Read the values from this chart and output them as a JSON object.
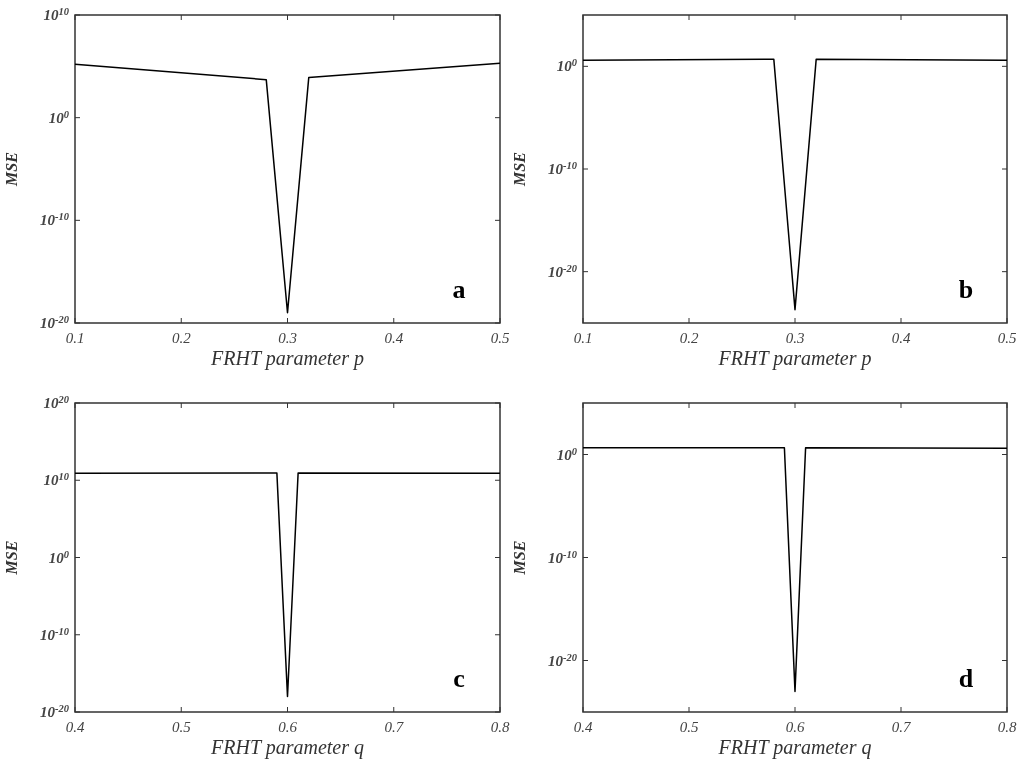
{
  "chart_data": [
    {
      "type": "line",
      "xlabel": "FRHT parameter p",
      "ylabel": "MSE",
      "log": "y",
      "annotations": [
        "a"
      ],
      "x": [
        0.1,
        0.28,
        0.3,
        0.32,
        0.5
      ],
      "xlim": [
        0.1,
        0.5
      ],
      "xticks": [
        0.1,
        0.2,
        0.3,
        0.4,
        0.5
      ],
      "ylim": [
        1e-20,
        10000000000.0
      ],
      "yticks": [
        {
          "value": 1e-20,
          "label": "10$^{-20}$"
        },
        {
          "value": 1e-10,
          "label": "10$^{-10}$"
        },
        {
          "value": 1,
          "label": "10$^{0}$"
        },
        {
          "value": 10000000000.0,
          "label": "10$^{10}$"
        }
      ],
      "series": [
        {
          "color": "#000000",
          "values": [
            160000.0,
            5000.0,
            1e-19,
            8000.0,
            200000.0
          ]
        }
      ]
    },
    {
      "type": "line",
      "xlabel": "FRHT parameter p",
      "ylabel": "MSE",
      "log": "y",
      "annotations": [
        "b"
      ],
      "x": [
        0.1,
        0.28,
        0.3,
        0.32,
        0.5
      ],
      "xlim": [
        0.1,
        0.5
      ],
      "xticks": [
        0.1,
        0.2,
        0.3,
        0.4,
        0.5
      ],
      "ylim": [
        1e-25,
        100000.0
      ],
      "yticks": [
        {
          "value": 1e-20,
          "label": "10$^{-20}$"
        },
        {
          "value": 1e-10,
          "label": "10$^{-10}$"
        },
        {
          "value": 1,
          "label": "10$^{0}$"
        }
      ],
      "series": [
        {
          "color": "#000000",
          "values": [
            4,
            5,
            2e-24,
            5,
            4
          ]
        }
      ]
    },
    {
      "type": "line",
      "xlabel": "FRHT parameter q",
      "ylabel": "MSE",
      "log": "y",
      "annotations": [
        "c"
      ],
      "x": [
        0.4,
        0.59,
        0.6,
        0.61,
        0.8
      ],
      "xlim": [
        0.4,
        0.8
      ],
      "xticks": [
        0.4,
        0.5,
        0.6,
        0.7,
        0.8
      ],
      "ylim": [
        1e-20,
        1e+20
      ],
      "yticks": [
        {
          "value": 1e-20,
          "label": "10$^{-20}$"
        },
        {
          "value": 1e-10,
          "label": "10$^{-10}$"
        },
        {
          "value": 1,
          "label": "10$^{0}$"
        },
        {
          "value": 10000000000.0,
          "label": "10$^{10}$"
        },
        {
          "value": 1e+20,
          "label": "10$^{20}$"
        }
      ],
      "series": [
        {
          "color": "#000000",
          "values": [
            80000000000.0,
            90000000000.0,
            1e-18,
            90000000000.0,
            80000000000.0
          ]
        }
      ]
    },
    {
      "type": "line",
      "xlabel": "FRHT parameter q",
      "ylabel": "MSE",
      "log": "y",
      "annotations": [
        "d"
      ],
      "x": [
        0.4,
        0.59,
        0.6,
        0.61,
        0.8
      ],
      "xlim": [
        0.4,
        0.8
      ],
      "xticks": [
        0.4,
        0.5,
        0.6,
        0.7,
        0.8
      ],
      "ylim": [
        1e-25,
        100000.0
      ],
      "yticks": [
        {
          "value": 1e-20,
          "label": "10$^{-20}$"
        },
        {
          "value": 1e-10,
          "label": "10$^{-10}$"
        },
        {
          "value": 1,
          "label": "10$^{0}$"
        }
      ],
      "series": [
        {
          "color": "#000000",
          "values": [
            4.5,
            4.5,
            1e-23,
            4.5,
            4
          ]
        }
      ]
    }
  ]
}
